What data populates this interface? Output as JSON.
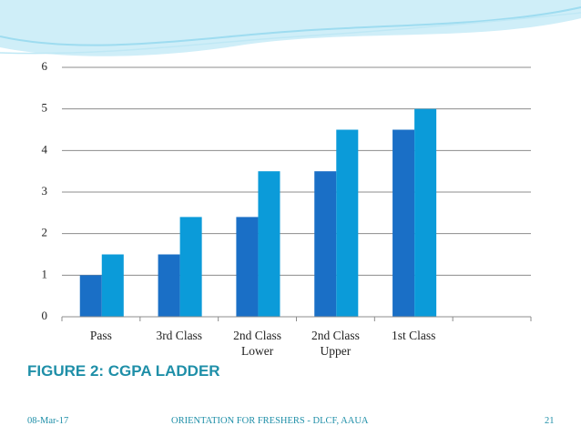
{
  "title": "FIGURE 2: CGPA LADDER",
  "footer": {
    "date": "08-Mar-17",
    "text": "ORIENTATION FOR FRESHERS - DLCF, AAUA",
    "page": "21"
  },
  "chart_data": {
    "type": "bar",
    "categories": [
      "Pass",
      "3rd Class",
      "2nd Class Lower",
      "2nd Class Upper",
      "1st Class",
      null
    ],
    "series": [
      {
        "color": "#1a6fc6",
        "values": [
          1,
          1.5,
          2.4,
          3.5,
          4.5,
          null
        ]
      },
      {
        "color": "#0b9bd9",
        "values": [
          1.5,
          2.4,
          3.5,
          4.5,
          5,
          null
        ]
      }
    ],
    "ylim": [
      0,
      6
    ],
    "yticks": [
      0,
      1,
      2,
      3,
      4,
      5,
      6
    ],
    "grid": true
  }
}
